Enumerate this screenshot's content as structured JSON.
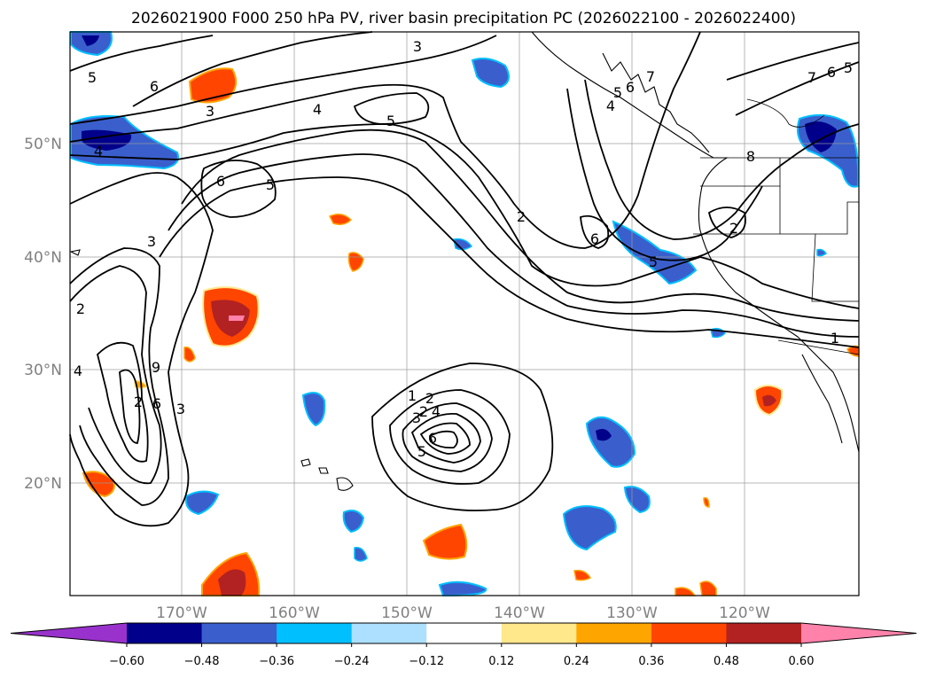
{
  "title": "2026021900 F000 250 hPa PV, river basin precipitation PC (2026022100 - 2026022400)",
  "axes": {
    "lat_labels": [
      "50°N",
      "40°N",
      "30°N",
      "20°N"
    ],
    "lon_labels": [
      "170°W",
      "160°W",
      "150°W",
      "140°W",
      "130°W",
      "120°W"
    ]
  },
  "colorbar": {
    "tick_labels": [
      "−0.60",
      "−0.48",
      "−0.36",
      "−0.24",
      "−0.12",
      "0.12",
      "0.24",
      "0.36",
      "0.48",
      "0.60"
    ],
    "colors": [
      "#9932CC",
      "#00008B",
      "#3A5FCD",
      "#00BFFF",
      "#ADDFFF",
      "#FFFFFF",
      "#FFE78C",
      "#FFA500",
      "#FF4500",
      "#B22222",
      "#FF82AB"
    ]
  },
  "contour_labels": [
    "5",
    "6",
    "3",
    "4",
    "5",
    "3",
    "2",
    "7",
    "6",
    "5",
    "4",
    "8",
    "6",
    "5",
    "2",
    "2",
    "6",
    "5",
    "4",
    "3",
    "1",
    "2",
    "1",
    "2",
    "3",
    "4",
    "5",
    "6",
    "2",
    "4",
    "9",
    "6",
    "3",
    "7",
    "6",
    "5"
  ]
}
